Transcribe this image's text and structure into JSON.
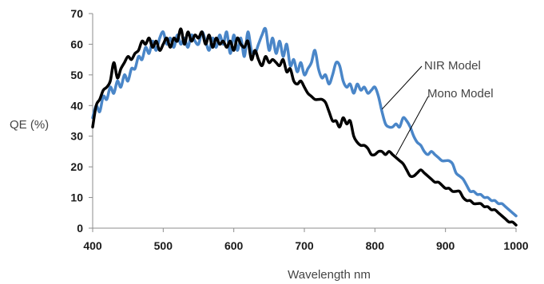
{
  "chart_data": {
    "type": "line",
    "title": "",
    "xlabel": "Wavelength nm",
    "ylabel": "QE (%)",
    "xlim": [
      400,
      1000
    ],
    "ylim": [
      0,
      70
    ],
    "xticks": [
      "400",
      "500",
      "600",
      "700",
      "800",
      "900",
      "1000"
    ],
    "yticks": [
      "0",
      "10",
      "20",
      "30",
      "40",
      "50",
      "60",
      "70"
    ],
    "grid": false,
    "legend": "callout labels",
    "series": [
      {
        "name": "NIR Model",
        "color": "#4a86c8",
        "x": [
          400,
          405,
          410,
          415,
          420,
          425,
          430,
          435,
          440,
          445,
          450,
          455,
          460,
          465,
          470,
          475,
          480,
          485,
          490,
          495,
          500,
          505,
          510,
          515,
          520,
          525,
          530,
          535,
          540,
          545,
          550,
          555,
          560,
          565,
          570,
          575,
          580,
          585,
          590,
          595,
          600,
          605,
          610,
          615,
          620,
          625,
          630,
          635,
          640,
          645,
          650,
          655,
          660,
          665,
          670,
          675,
          680,
          685,
          690,
          695,
          700,
          705,
          710,
          715,
          720,
          725,
          730,
          735,
          740,
          745,
          750,
          755,
          760,
          765,
          770,
          775,
          780,
          785,
          790,
          795,
          800,
          805,
          810,
          815,
          820,
          825,
          830,
          835,
          840,
          845,
          850,
          855,
          860,
          865,
          870,
          875,
          880,
          885,
          890,
          895,
          900,
          905,
          910,
          915,
          920,
          925,
          930,
          935,
          940,
          945,
          950,
          955,
          960,
          965,
          970,
          975,
          980,
          985,
          990,
          995,
          1000
        ],
        "values": [
          36,
          40,
          38,
          43,
          42,
          46,
          44,
          48,
          46,
          50,
          48,
          52,
          52,
          56,
          55,
          59,
          57,
          61,
          58,
          62,
          64,
          60,
          62,
          59,
          63,
          60,
          62,
          59,
          63,
          61,
          60,
          64,
          61,
          58,
          62,
          59,
          63,
          60,
          64,
          57,
          63,
          58,
          62,
          56,
          64,
          58,
          57,
          60,
          63,
          65,
          58,
          62,
          57,
          61,
          56,
          60,
          53,
          55,
          51,
          54,
          50,
          52,
          54,
          58,
          52,
          49,
          50,
          47,
          50,
          54,
          53,
          48,
          46,
          47,
          44,
          47,
          45,
          46,
          44,
          45,
          46,
          43,
          38,
          34,
          33,
          33,
          34,
          33,
          36,
          35,
          33,
          30,
          28,
          27,
          25,
          24,
          25,
          24,
          23,
          22,
          22,
          22,
          21,
          18,
          17,
          16,
          14,
          12,
          12,
          11,
          11,
          10,
          10,
          9,
          9,
          8,
          8,
          7,
          6,
          5,
          4
        ]
      },
      {
        "name": "Mono Model",
        "color": "#000000",
        "x": [
          400,
          405,
          410,
          415,
          420,
          425,
          430,
          435,
          440,
          445,
          450,
          455,
          460,
          465,
          470,
          475,
          480,
          485,
          490,
          495,
          500,
          505,
          510,
          515,
          520,
          525,
          530,
          535,
          540,
          545,
          550,
          555,
          560,
          565,
          570,
          575,
          580,
          585,
          590,
          595,
          600,
          605,
          610,
          615,
          620,
          625,
          630,
          635,
          640,
          645,
          650,
          655,
          660,
          665,
          670,
          675,
          680,
          685,
          690,
          695,
          700,
          705,
          710,
          715,
          720,
          725,
          730,
          735,
          740,
          745,
          750,
          755,
          760,
          765,
          770,
          775,
          780,
          785,
          790,
          795,
          800,
          805,
          810,
          815,
          820,
          825,
          830,
          835,
          840,
          845,
          850,
          855,
          860,
          865,
          870,
          875,
          880,
          885,
          890,
          895,
          900,
          905,
          910,
          915,
          920,
          925,
          930,
          935,
          940,
          945,
          950,
          955,
          960,
          965,
          970,
          975,
          980,
          985,
          990,
          995,
          1000
        ],
        "values": [
          33,
          40,
          42,
          45,
          46,
          48,
          54,
          49,
          52,
          54,
          56,
          55,
          57,
          58,
          61,
          60,
          62,
          59,
          61,
          58,
          60,
          62,
          59,
          62,
          61,
          65,
          60,
          64,
          61,
          63,
          62,
          64,
          60,
          63,
          59,
          62,
          60,
          61,
          59,
          61,
          58,
          62,
          60,
          59,
          61,
          55,
          58,
          55,
          53,
          56,
          54,
          55,
          54,
          53,
          55,
          51,
          52,
          48,
          47,
          48,
          46,
          44,
          43,
          42,
          42,
          42,
          41,
          38,
          35,
          35,
          33,
          36,
          34,
          35,
          30,
          28,
          27,
          27,
          26,
          24,
          24,
          25,
          25,
          24,
          25,
          24,
          23,
          22,
          21,
          19,
          17,
          17,
          18,
          19,
          18,
          17,
          16,
          15,
          15,
          14,
          13,
          13,
          12,
          12,
          12,
          10,
          9,
          9,
          8,
          8,
          8,
          7,
          7,
          6,
          6,
          5,
          4,
          3,
          2,
          2,
          1
        ]
      }
    ],
    "annotations": [
      {
        "text": "NIR Model",
        "target_series": "NIR Model",
        "target_x": 810
      },
      {
        "text": "Mono Model",
        "target_series": "Mono Model",
        "target_x": 830
      }
    ]
  }
}
